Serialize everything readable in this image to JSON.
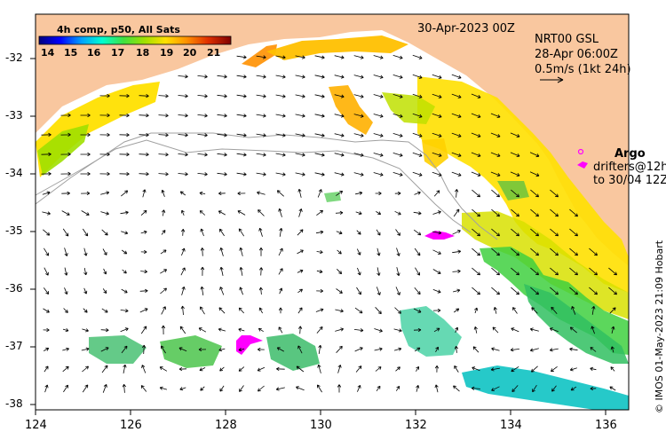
{
  "header": {
    "date_label": "30-Apr-2023 00Z",
    "product_line1": "NRT00 GSL",
    "product_line2": "28-Apr 06:00Z",
    "product_line3": "0.5m/s (1kt 24h)"
  },
  "colorbar": {
    "title": "4h comp, p50, All Sats",
    "ticks": [
      "14",
      "15",
      "16",
      "17",
      "18",
      "19",
      "20",
      "21"
    ],
    "colors": [
      "#00007f",
      "#0000ff",
      "#00a0ff",
      "#00ffd0",
      "#40e040",
      "#a0e000",
      "#ffe000",
      "#ff9000",
      "#e03000",
      "#800000"
    ]
  },
  "axes": {
    "y_ticks": [
      "-32",
      "-33",
      "-34",
      "-35",
      "-36",
      "-37",
      "-38"
    ],
    "x_ticks": [
      "124",
      "126",
      "128",
      "130",
      "132",
      "134",
      "136"
    ]
  },
  "legend": {
    "argo_title": "Argo",
    "drifters_line": "drifters@12h",
    "drifters_to": "to 30/04 12Z"
  },
  "credit": "© IMOS 01-May-2023 21:09 Hobart",
  "colors": {
    "land": "#f9c79f",
    "ocean": "#ffffff",
    "argo": "#ff00ff"
  }
}
